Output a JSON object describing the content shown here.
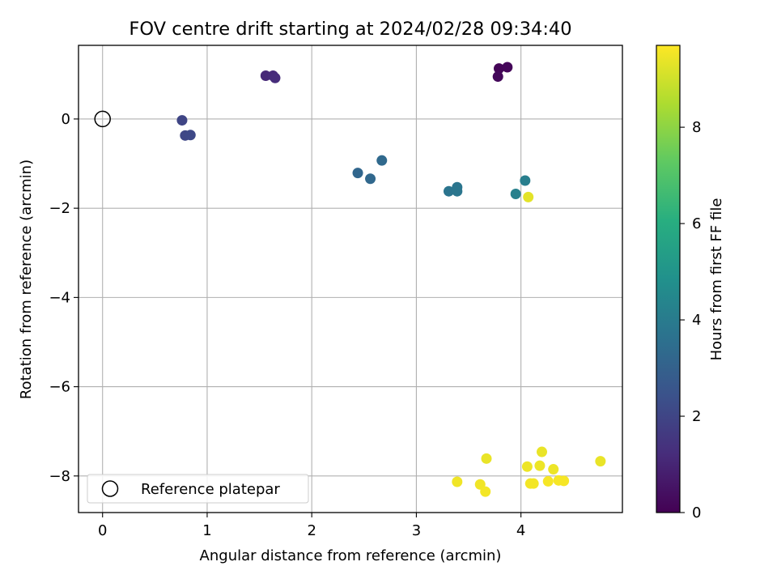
{
  "chart_data": {
    "type": "scatter",
    "title": "FOV centre drift starting at 2024/02/28 09:34:40",
    "xlabel": "Angular distance from reference (arcmin)",
    "ylabel": "Rotation from reference (arcmin)",
    "xlim": [
      -0.23,
      4.97
    ],
    "ylim": [
      -8.82,
      1.65
    ],
    "xticks": [
      0,
      1,
      2,
      3,
      4
    ],
    "xtick_labels": [
      "0",
      "1",
      "2",
      "3",
      "4"
    ],
    "yticks": [
      0,
      -2,
      -4,
      -6,
      -8
    ],
    "ytick_labels": [
      "0",
      "−2",
      "−4",
      "−6",
      "−8"
    ],
    "grid": true,
    "legend": {
      "placement": "lower-left",
      "entries": [
        "Reference platepar"
      ]
    },
    "reference_point": {
      "x": 0,
      "y": 0
    },
    "colorbar": {
      "label": "Hours from first FF file",
      "range": [
        0,
        9.7
      ],
      "ticks": [
        0,
        2,
        4,
        6,
        8
      ],
      "tick_labels": [
        "0",
        "2",
        "4",
        "6",
        "8"
      ],
      "colormap": "viridis"
    },
    "points": [
      {
        "x": 3.79,
        "y": 1.13,
        "hours": 0.1
      },
      {
        "x": 3.87,
        "y": 1.16,
        "hours": 0.15
      },
      {
        "x": 3.78,
        "y": 0.95,
        "hours": 0.2
      },
      {
        "x": 1.56,
        "y": 0.97,
        "hours": 1.1
      },
      {
        "x": 1.63,
        "y": 0.97,
        "hours": 1.15
      },
      {
        "x": 1.65,
        "y": 0.92,
        "hours": 1.2
      },
      {
        "x": 0.76,
        "y": -0.03,
        "hours": 2.0
      },
      {
        "x": 0.79,
        "y": -0.37,
        "hours": 2.05
      },
      {
        "x": 0.84,
        "y": -0.36,
        "hours": 2.1
      },
      {
        "x": 2.44,
        "y": -1.21,
        "hours": 3.2
      },
      {
        "x": 2.56,
        "y": -1.34,
        "hours": 3.25
      },
      {
        "x": 2.67,
        "y": -0.93,
        "hours": 3.3
      },
      {
        "x": 3.31,
        "y": -1.62,
        "hours": 3.7
      },
      {
        "x": 3.39,
        "y": -1.53,
        "hours": 3.75
      },
      {
        "x": 3.39,
        "y": -1.62,
        "hours": 3.8
      },
      {
        "x": 4.04,
        "y": -1.38,
        "hours": 4.1
      },
      {
        "x": 3.95,
        "y": -1.68,
        "hours": 4.2
      },
      {
        "x": 4.07,
        "y": -1.75,
        "hours": 9.3
      },
      {
        "x": 3.67,
        "y": -7.61,
        "hours": 9.4
      },
      {
        "x": 4.2,
        "y": -7.46,
        "hours": 9.4
      },
      {
        "x": 4.76,
        "y": -7.67,
        "hours": 9.4
      },
      {
        "x": 4.06,
        "y": -7.79,
        "hours": 9.45
      },
      {
        "x": 4.18,
        "y": -7.77,
        "hours": 9.45
      },
      {
        "x": 4.31,
        "y": -7.85,
        "hours": 9.45
      },
      {
        "x": 3.39,
        "y": -8.13,
        "hours": 9.5
      },
      {
        "x": 3.61,
        "y": -8.19,
        "hours": 9.5
      },
      {
        "x": 3.66,
        "y": -8.35,
        "hours": 9.55
      },
      {
        "x": 4.09,
        "y": -8.17,
        "hours": 9.55
      },
      {
        "x": 4.12,
        "y": -8.17,
        "hours": 9.55
      },
      {
        "x": 4.26,
        "y": -8.12,
        "hours": 9.6
      },
      {
        "x": 4.36,
        "y": -8.1,
        "hours": 9.6
      },
      {
        "x": 4.41,
        "y": -8.11,
        "hours": 9.6
      }
    ]
  }
}
